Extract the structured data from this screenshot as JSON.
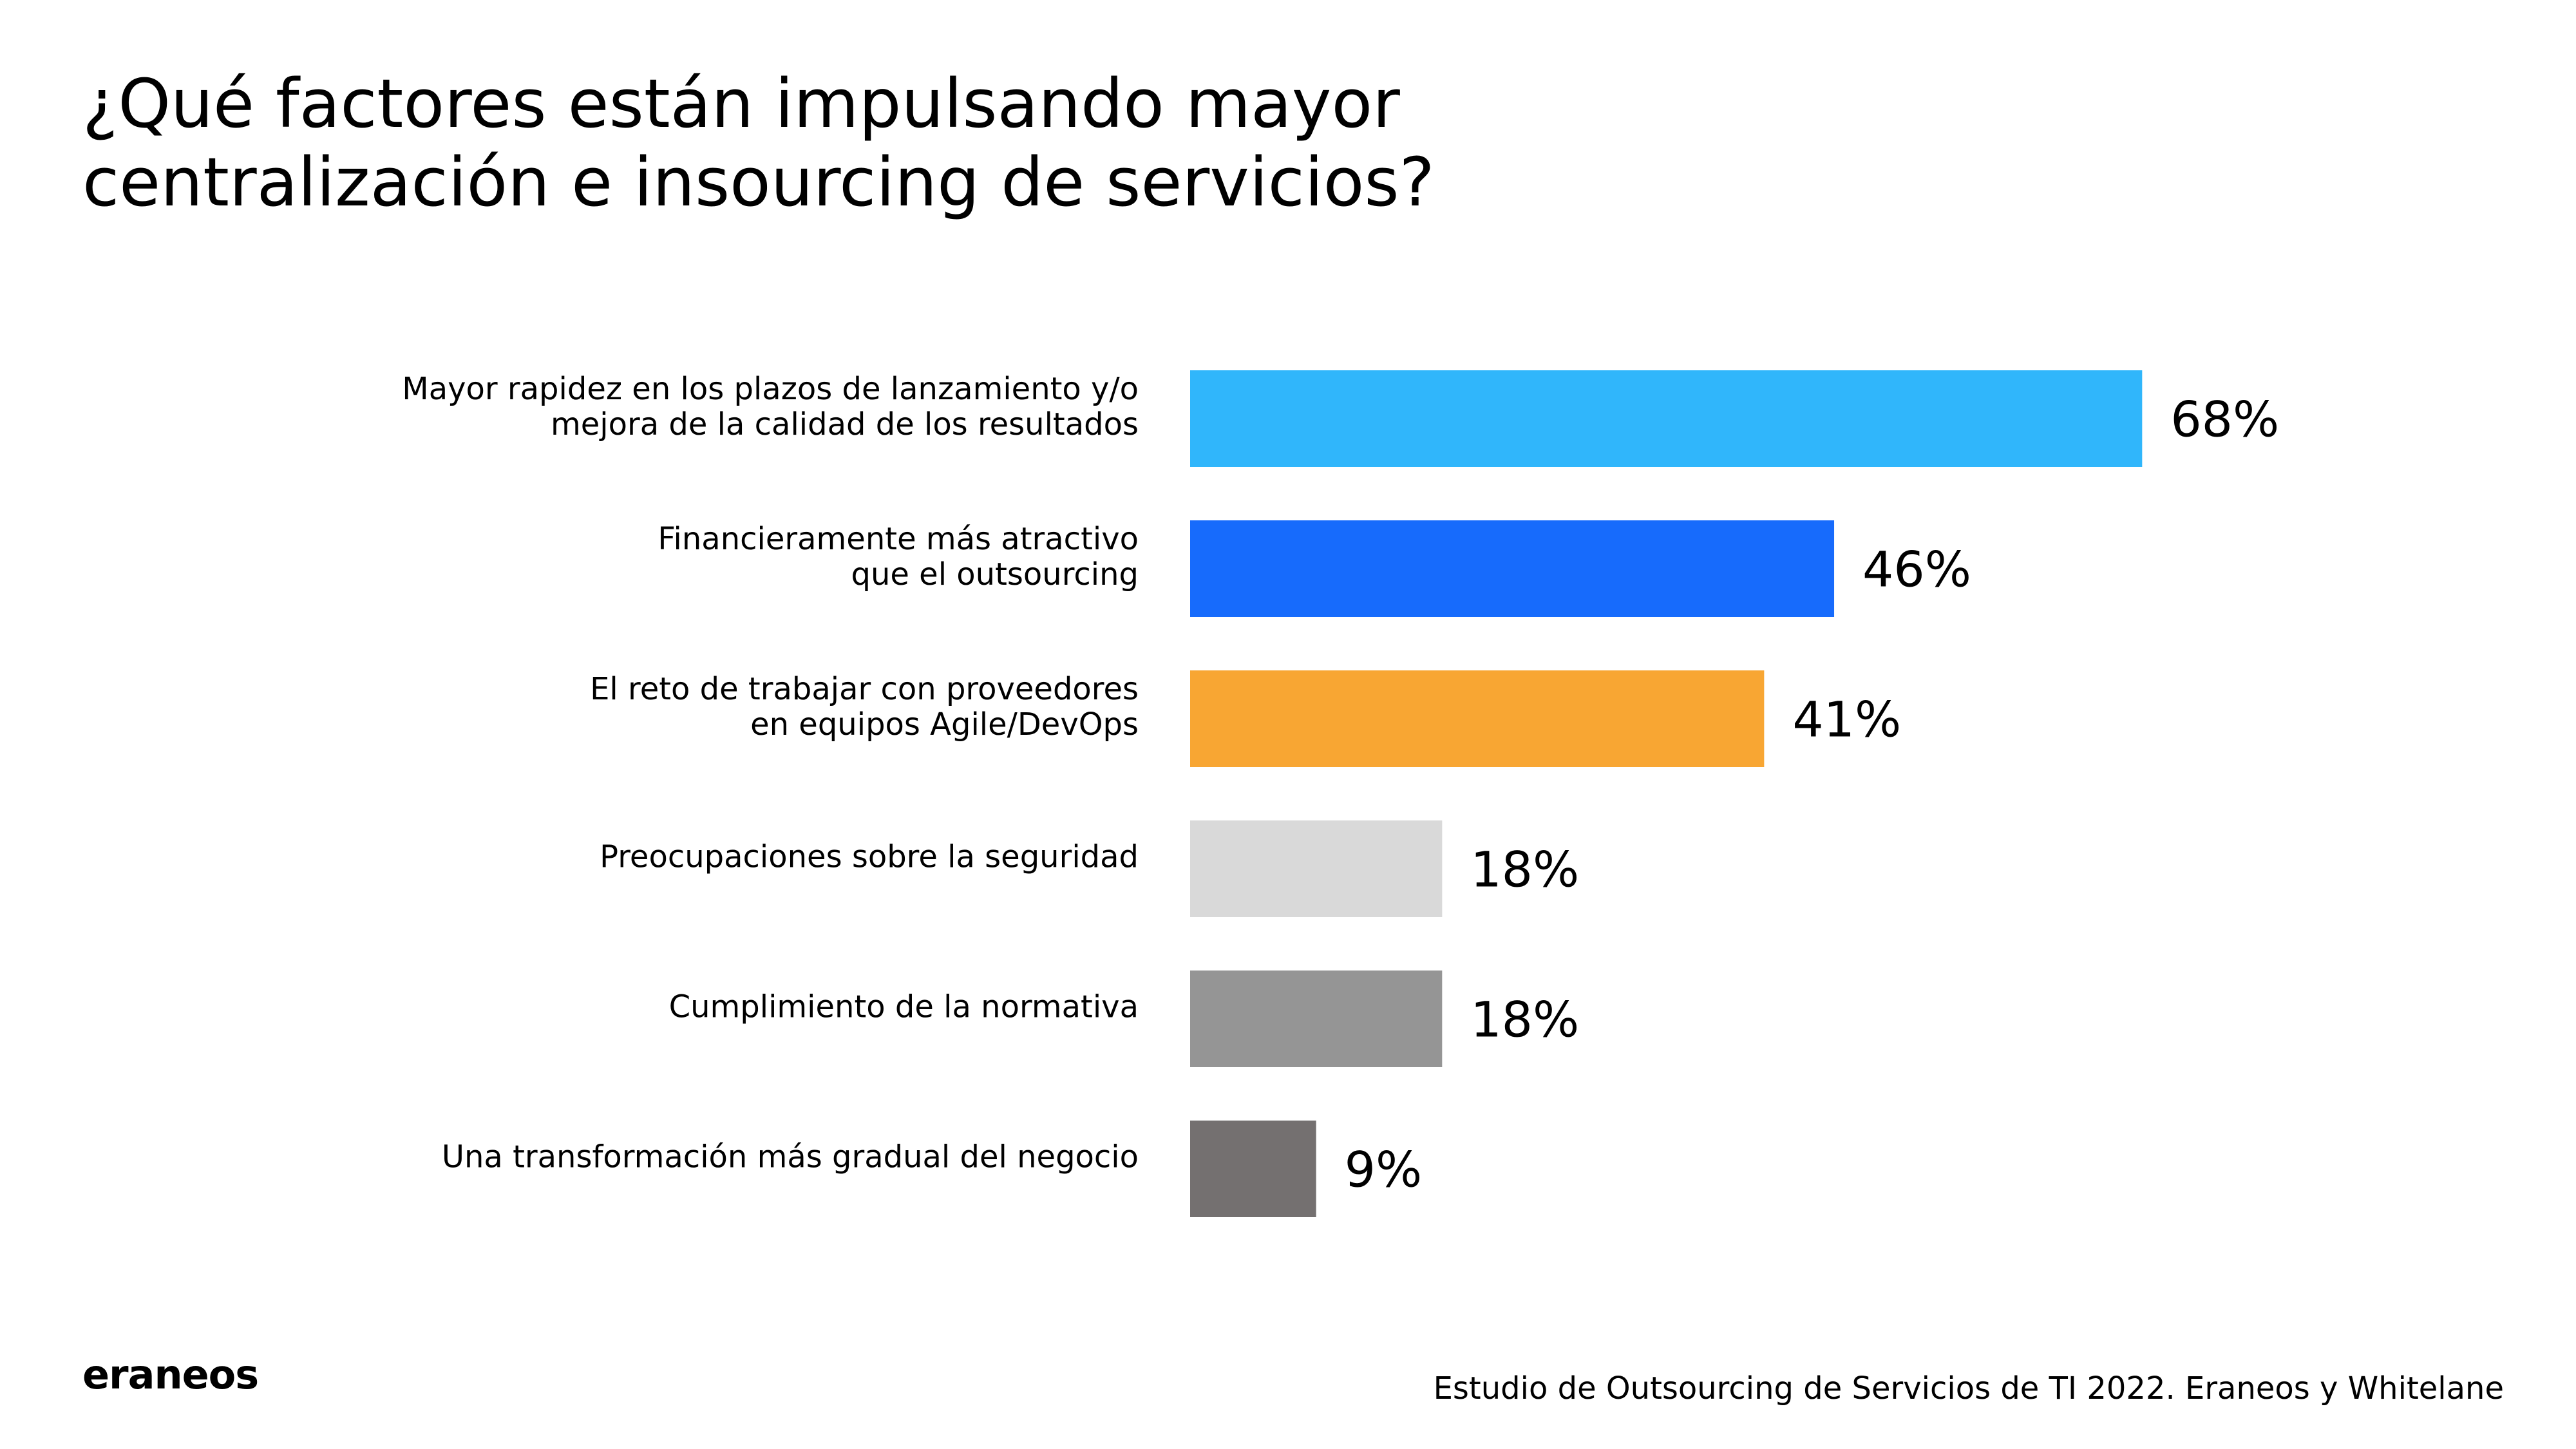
{
  "title": {
    "line1": "¿Qué factores están impulsando mayor",
    "line2": "centralización e insourcing de servicios?"
  },
  "chart_data": {
    "type": "bar",
    "orientation": "horizontal",
    "title": "¿Qué factores están impulsando mayor centralización e insourcing de servicios?",
    "xlabel": "",
    "ylabel": "",
    "xlim": [
      0,
      100
    ],
    "grid": false,
    "legend": "none",
    "value_suffix": "%",
    "categories": [
      [
        "Mayor rapidez en los plazos de lanzamiento y/o",
        "mejora de la calidad de los resultados"
      ],
      [
        "Financieramente más atractivo",
        "que el outsourcing"
      ],
      [
        "El reto de trabajar con proveedores",
        "en equipos Agile/DevOps"
      ],
      [
        "Preocupaciones sobre la seguridad"
      ],
      [
        "Cumplimiento de la normativa"
      ],
      [
        "Una transformación más gradual del negocio"
      ]
    ],
    "values": [
      68,
      46,
      41,
      18,
      18,
      9
    ],
    "value_labels": [
      "68%",
      "46%",
      "41%",
      "18%",
      "18%",
      "9%"
    ],
    "colors": [
      "#30b6fb",
      "#176bfc",
      "#f8a633",
      "#d9d9d9",
      "#959595",
      "#747070"
    ]
  },
  "footer": {
    "logo": "eraneos",
    "source": "Estudio de Outsourcing de Servicios de TI 2022. Eraneos y Whitelane"
  }
}
